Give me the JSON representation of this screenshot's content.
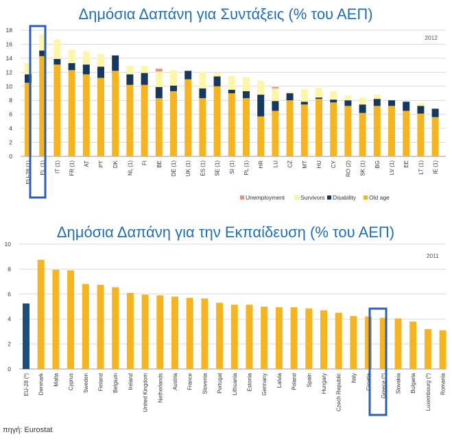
{
  "source": "πηγή: Eurostat",
  "colors": {
    "old_age": "#f6b520",
    "disability": "#16375e",
    "survivors": "#fdf5a8",
    "unemployment": "#e8917e",
    "highlight": "#2e5db8",
    "education": "#f6b520",
    "eu_bar": "#1b4f7a",
    "title": "#1f6fb5"
  },
  "chart_data": [
    {
      "type": "bar",
      "stacked": true,
      "title": "Δημόσια Δαπάνη για Συντάξεις (% του ΑΕΠ)",
      "year_label": "2012",
      "ylim": [
        0,
        18
      ],
      "yticks": [
        "0",
        "2",
        "4",
        "6",
        "8",
        "10",
        "12",
        "14",
        "16",
        "18"
      ],
      "grid": true,
      "highlight_category": "EL (1)",
      "legend_position": "bottom-right",
      "categories": [
        "EU-28 (1)",
        "EL (1)",
        "IT (1)",
        "FR (1)",
        "AT",
        "PT",
        "DK",
        "NL (1)",
        "FI",
        "BE",
        "DE (1)",
        "UK (1)",
        "ES (1)",
        "SE (1)",
        "SI (1)",
        "PL (1)",
        "HR",
        "LU",
        "CZ",
        "MT",
        "HU",
        "CY",
        "RO (2)",
        "SK (1)",
        "BG",
        "LV (1)",
        "EE",
        "LT (1)",
        "IE (1)"
      ],
      "series": [
        {
          "name": "Old age",
          "key": "old_age",
          "values": [
            10.5,
            14.3,
            13.1,
            12.3,
            11.7,
            11.2,
            12.2,
            10.2,
            10.2,
            8.3,
            9.3,
            11.0,
            8.3,
            10.0,
            9.0,
            8.3,
            5.7,
            6.5,
            8.0,
            7.4,
            8.2,
            7.7,
            7.2,
            6.2,
            7.2,
            7.2,
            6.5,
            6.1,
            5.6
          ]
        },
        {
          "name": "Disability",
          "key": "disability",
          "values": [
            1.2,
            0.8,
            0.8,
            1.0,
            1.4,
            1.6,
            2.2,
            1.5,
            1.7,
            1.6,
            0.8,
            1.2,
            1.4,
            1.4,
            0.5,
            1.0,
            3.1,
            1.4,
            1.0,
            0.4,
            0.2,
            0.4,
            0.8,
            1.2,
            1.0,
            0.8,
            1.3,
            1.1,
            1.2
          ]
        },
        {
          "name": "Survivors",
          "key": "survivors",
          "values": [
            1.6,
            2.3,
            2.8,
            1.9,
            1.9,
            1.8,
            0.0,
            1.2,
            1.0,
            2.2,
            2.2,
            0.0,
            2.4,
            0.5,
            2.0,
            2.0,
            2.0,
            1.8,
            0.3,
            1.8,
            1.4,
            1.2,
            0.7,
            1.0,
            0.6,
            0.0,
            0.0,
            0.4,
            0.0
          ]
        },
        {
          "name": "Unemployment",
          "key": "unemployment",
          "values": [
            0.0,
            0.0,
            0.0,
            0.0,
            0.0,
            0.0,
            0.0,
            0.0,
            0.0,
            0.4,
            0.0,
            0.0,
            0.0,
            0.0,
            0.0,
            0.0,
            0.0,
            0.2,
            0.0,
            0.0,
            0.0,
            0.0,
            0.0,
            0.0,
            0.0,
            0.0,
            0.0,
            0.0,
            0.0
          ]
        }
      ],
      "legend": [
        "Unemployment",
        "Survivors",
        "Disability",
        "Old age"
      ]
    },
    {
      "type": "bar",
      "title": "Δημόσια Δαπάνη για την Εκπαίδευση (% του ΑΕΠ)",
      "year_label": "2011",
      "ylim": [
        0,
        10
      ],
      "yticks": [
        "0",
        "2",
        "4",
        "6",
        "8",
        "10"
      ],
      "grid": true,
      "highlight_category": "Greece (*)",
      "categories": [
        "EU-28 (*)",
        "Denmark",
        "Malta",
        "Cyprus",
        "Sweden",
        "Finland",
        "Belgium",
        "Ireland",
        "United Kingdom",
        "Netherlands",
        "Austria",
        "France",
        "Slovenia",
        "Portugal",
        "Lithuania",
        "Estonia",
        "Germany",
        "Latvia",
        "Poland",
        "Spain",
        "Hungary",
        "Czech Republic",
        "Italy",
        "Croatia",
        "Greece (*)",
        "Slovakia",
        "Bulgaria",
        "Luxembourg (*)",
        "Romania"
      ],
      "values": [
        5.25,
        8.75,
        7.95,
        7.9,
        6.8,
        6.75,
        6.55,
        6.1,
        5.95,
        5.9,
        5.8,
        5.7,
        5.65,
        5.3,
        5.15,
        5.15,
        5.0,
        4.95,
        4.95,
        4.85,
        4.7,
        4.5,
        4.25,
        4.2,
        4.1,
        4.05,
        3.8,
        3.2,
        3.1
      ]
    }
  ]
}
